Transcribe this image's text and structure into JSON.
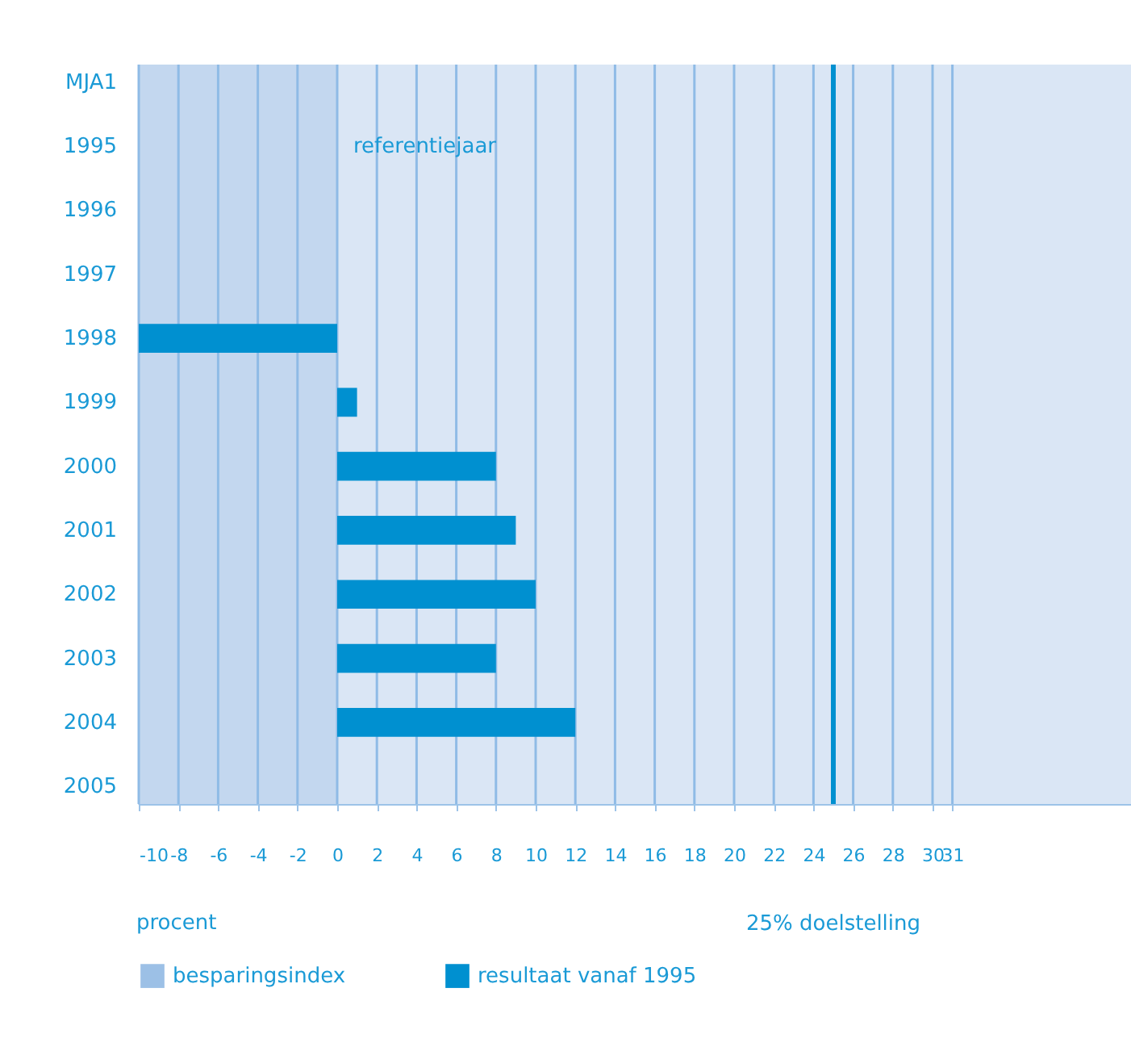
{
  "chart_data": {
    "type": "bar",
    "orientation": "horizontal",
    "categories": [
      "MJA1",
      "1995",
      "1996",
      "1997",
      "1998",
      "1999",
      "2000",
      "2001",
      "2002",
      "2003",
      "2004",
      "2005"
    ],
    "series": [
      {
        "name": "besparingsindex",
        "color": "#9cc0e6",
        "values": [
          null,
          null,
          null,
          null,
          null,
          null,
          null,
          null,
          null,
          null,
          null,
          null
        ]
      },
      {
        "name": "resultaat vanaf 1995",
        "color": "#0090d0",
        "values": [
          null,
          null,
          null,
          null,
          -10,
          1,
          8,
          9,
          10,
          8,
          12,
          null
        ]
      }
    ],
    "xlabel": "procent",
    "xlim": [
      -10,
      40
    ],
    "xticks": [
      -10,
      -8,
      -6,
      -4,
      -2,
      0,
      2,
      4,
      6,
      8,
      10,
      12,
      14,
      16,
      18,
      20,
      22,
      24,
      26,
      28,
      30,
      31
    ],
    "grid": "x",
    "legend": "bottom",
    "ref_lines": [
      {
        "axis": "x",
        "value": 25,
        "label": "25% doelstelling",
        "color": "#0090d0"
      }
    ],
    "bands": [
      {
        "axis": "x",
        "from": -10,
        "to": 0,
        "color": "#c3d7ef"
      }
    ],
    "annotations": [
      {
        "text": "referentiejaar",
        "x": 0,
        "y": "1995"
      }
    ]
  }
}
